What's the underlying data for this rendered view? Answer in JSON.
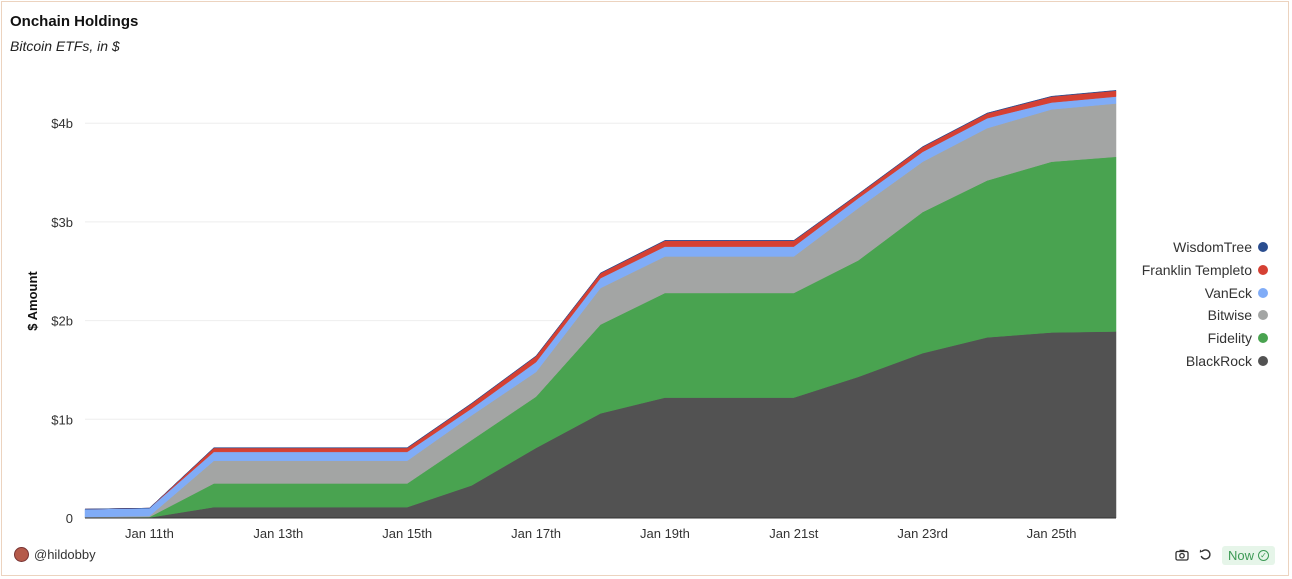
{
  "header": {
    "title": "Onchain Holdings",
    "subtitle": "Bitcoin ETFs, in $"
  },
  "chart_data": {
    "type": "area",
    "stacked": true,
    "title": "Onchain Holdings",
    "subtitle": "Bitcoin ETFs, in $",
    "xlabel": "",
    "ylabel": "$ Amount",
    "x": [
      "Jan 10",
      "Jan 11",
      "Jan 12",
      "Jan 13",
      "Jan 14",
      "Jan 15",
      "Jan 16",
      "Jan 17",
      "Jan 18",
      "Jan 19",
      "Jan 20",
      "Jan 21",
      "Jan 22",
      "Jan 23",
      "Jan 24",
      "Jan 25",
      "Jan 26"
    ],
    "x_tick_labels": [
      "Jan 11th",
      "Jan 13th",
      "Jan 15th",
      "Jan 17th",
      "Jan 19th",
      "Jan 21st",
      "Jan 23rd",
      "Jan 25th"
    ],
    "x_tick_dates": [
      "Jan 11",
      "Jan 13",
      "Jan 15",
      "Jan 17",
      "Jan 19",
      "Jan 21",
      "Jan 23",
      "Jan 25"
    ],
    "y_unit": "billion USD",
    "ylim": [
      0,
      4.4
    ],
    "y_ticks": [
      0,
      1,
      2,
      3,
      4
    ],
    "y_tick_labels": [
      "0",
      "$1b",
      "$2b",
      "$3b",
      "$4b"
    ],
    "grid": true,
    "legend_position": "right",
    "series": [
      {
        "name": "BlackRock",
        "color": "#525252",
        "values": [
          0.003,
          0.005,
          0.11,
          0.11,
          0.11,
          0.11,
          0.33,
          0.71,
          1.06,
          1.22,
          1.22,
          1.22,
          1.43,
          1.67,
          1.83,
          1.88,
          1.89
        ]
      },
      {
        "name": "Fidelity",
        "color": "#49a350",
        "values": [
          0.002,
          0.005,
          0.24,
          0.24,
          0.24,
          0.24,
          0.46,
          0.52,
          0.9,
          1.06,
          1.06,
          1.06,
          1.18,
          1.43,
          1.59,
          1.73,
          1.77
        ]
      },
      {
        "name": "Bitwise",
        "color": "#a3a5a4",
        "values": [
          0.005,
          0.01,
          0.23,
          0.23,
          0.23,
          0.23,
          0.25,
          0.25,
          0.37,
          0.37,
          0.37,
          0.37,
          0.53,
          0.51,
          0.53,
          0.53,
          0.54
        ]
      },
      {
        "name": "VanEck",
        "color": "#80acf7",
        "values": [
          0.08,
          0.08,
          0.09,
          0.09,
          0.09,
          0.09,
          0.07,
          0.1,
          0.1,
          0.1,
          0.1,
          0.1,
          0.1,
          0.1,
          0.1,
          0.07,
          0.07
        ]
      },
      {
        "name": "Franklin Templeto",
        "color": "#d54033",
        "values": [
          0,
          0,
          0.04,
          0.04,
          0.04,
          0.04,
          0.05,
          0.06,
          0.05,
          0.06,
          0.06,
          0.06,
          0.04,
          0.05,
          0.05,
          0.06,
          0.06
        ]
      },
      {
        "name": "WisdomTree",
        "color": "#2a4d8f",
        "values": [
          0,
          0,
          0.003,
          0.003,
          0.003,
          0.003,
          0.003,
          0.003,
          0.003,
          0.003,
          0.003,
          0.003,
          0.003,
          0.003,
          0.003,
          0.003,
          0.003
        ]
      }
    ]
  },
  "legend": {
    "items": [
      "WisdomTree",
      "Franklin Templeto",
      "VanEck",
      "Bitwise",
      "Fidelity",
      "BlackRock"
    ]
  },
  "footer": {
    "user": "@hildobby",
    "status": "Now",
    "icons": [
      "camera-icon",
      "refresh-icon",
      "check-circle-icon"
    ]
  }
}
